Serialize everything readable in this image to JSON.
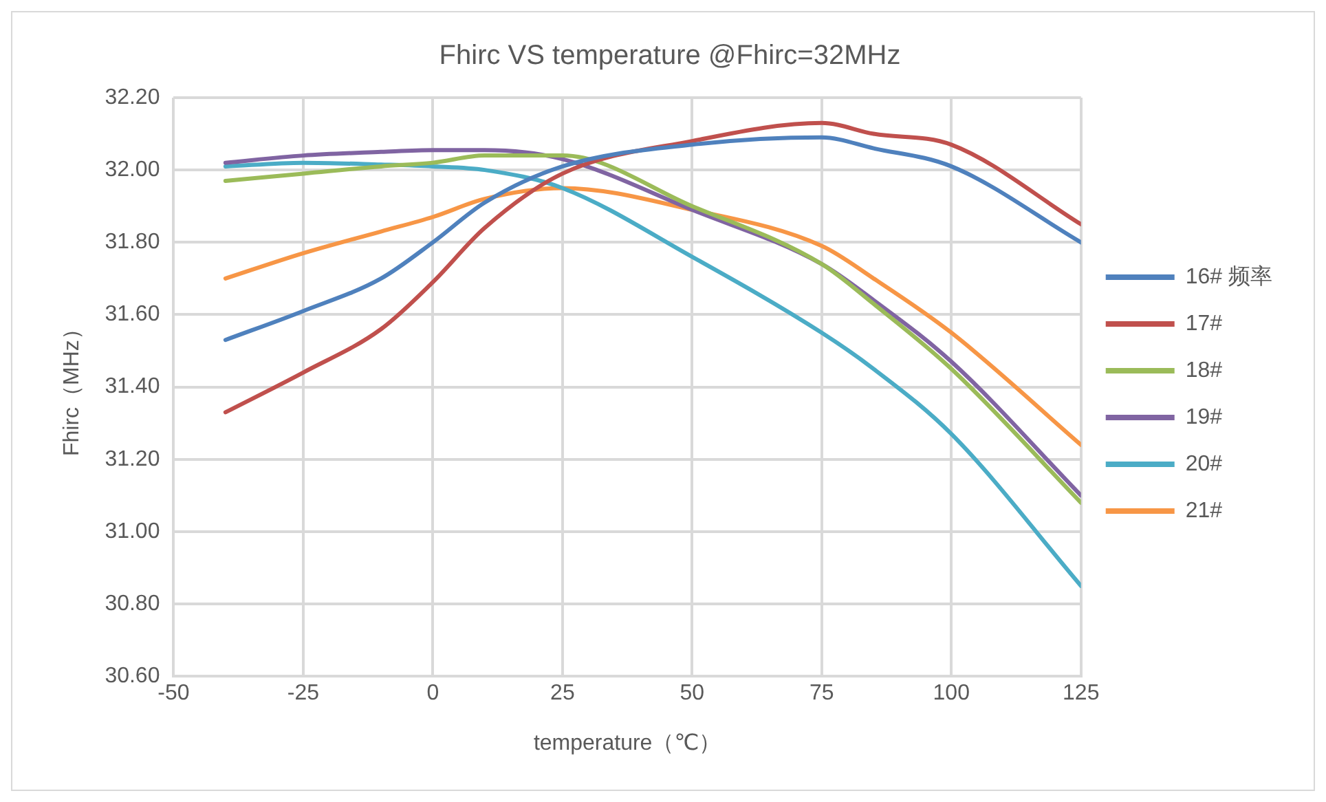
{
  "chart_data": {
    "type": "line",
    "title": "Fhirc VS temperature @Fhirc=32MHz",
    "xlabel": "temperature（℃）",
    "ylabel": "Fhirc（MHz）",
    "x": [
      -40,
      -25,
      -10,
      0,
      10,
      25,
      50,
      75,
      85,
      100,
      125
    ],
    "series": [
      {
        "name": "16# 频率",
        "color": "#4f81bd",
        "values": [
          31.53,
          31.61,
          31.7,
          31.8,
          31.91,
          32.01,
          32.07,
          32.09,
          32.06,
          32.01,
          31.8
        ]
      },
      {
        "name": "17#",
        "color": "#c0504d",
        "values": [
          31.33,
          31.44,
          31.56,
          31.69,
          31.84,
          31.99,
          32.08,
          32.13,
          32.1,
          32.07,
          31.85
        ]
      },
      {
        "name": "18#",
        "color": "#9bbb59",
        "values": [
          31.97,
          31.99,
          32.01,
          32.02,
          32.04,
          32.04,
          31.9,
          31.74,
          31.63,
          31.45,
          31.08
        ]
      },
      {
        "name": "19#",
        "color": "#8064a2",
        "values": [
          32.02,
          32.04,
          32.05,
          32.055,
          32.055,
          32.03,
          31.89,
          31.74,
          31.64,
          31.47,
          31.1
        ]
      },
      {
        "name": "20#",
        "color": "#4bacc6",
        "values": [
          32.01,
          32.02,
          32.015,
          32.01,
          32.0,
          31.95,
          31.76,
          31.55,
          31.45,
          31.27,
          30.85
        ]
      },
      {
        "name": "21#",
        "color": "#f79646",
        "values": [
          31.7,
          31.77,
          31.83,
          31.87,
          31.92,
          31.95,
          31.89,
          31.79,
          31.7,
          31.55,
          31.24
        ]
      }
    ],
    "xlim": [
      -50,
      125
    ],
    "xticks": [
      -50,
      -25,
      0,
      25,
      50,
      75,
      100,
      125
    ],
    "ylim": [
      30.6,
      32.2
    ],
    "yticks": [
      {
        "value": 30.6,
        "label": "30.60"
      },
      {
        "value": 30.8,
        "label": "30.80"
      },
      {
        "value": 31.0,
        "label": "31.00"
      },
      {
        "value": 31.2,
        "label": "31.20"
      },
      {
        "value": 31.4,
        "label": "31.40"
      },
      {
        "value": 31.6,
        "label": "31.60"
      },
      {
        "value": 31.8,
        "label": "31.80"
      },
      {
        "value": 32.0,
        "label": "32.00"
      },
      {
        "value": 32.2,
        "label": "32.20"
      }
    ],
    "grid": true,
    "legend": "right",
    "marker": "none",
    "line_style": "solid"
  }
}
